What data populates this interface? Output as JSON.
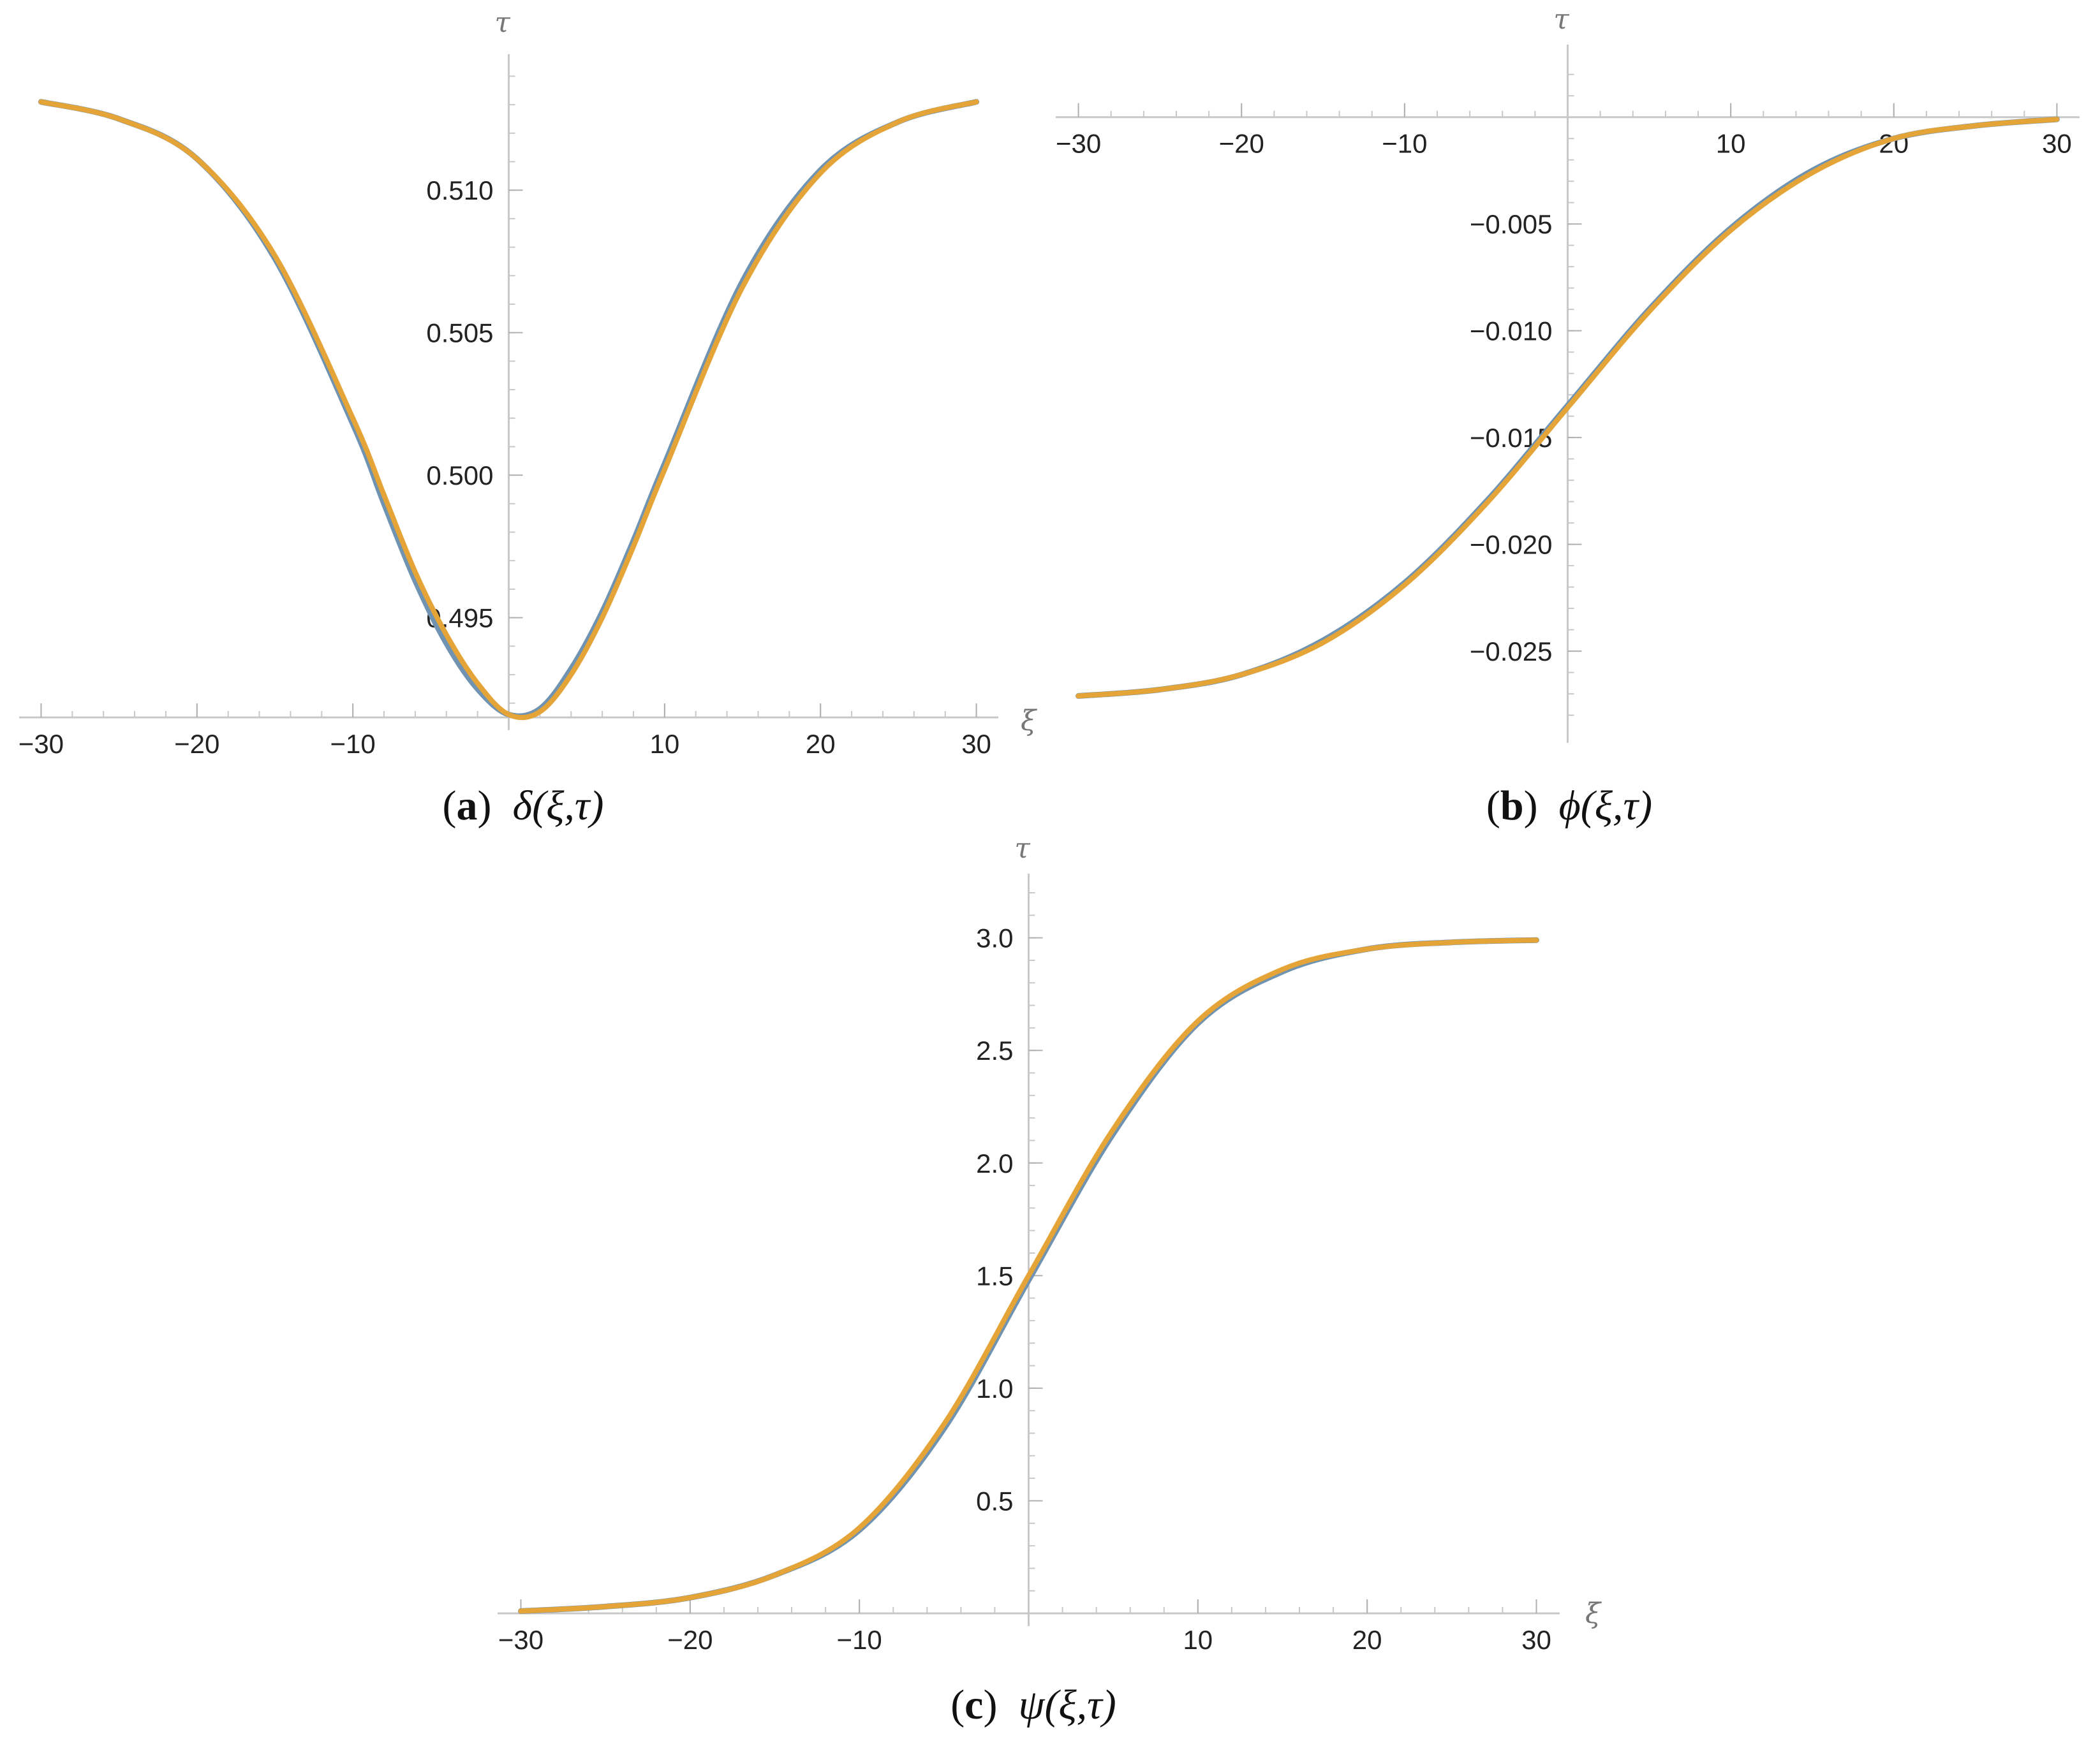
{
  "chart_data": [
    {
      "type": "line",
      "caption_letter": "a",
      "caption_math": "δ(ξ,τ)",
      "xlabel": "ξ",
      "ylabel": "τ",
      "xlim": [
        -31,
        31
      ],
      "ylim": [
        0.4915,
        0.5141
      ],
      "x_axis_at_y": 0.4915,
      "y_axis_at_x": 0,
      "xticks": [
        {
          "value": -30,
          "label": "−30"
        },
        {
          "value": -20,
          "label": "−20"
        },
        {
          "value": -10,
          "label": "−10"
        },
        {
          "value": 10,
          "label": "10"
        },
        {
          "value": 20,
          "label": "20"
        },
        {
          "value": 30,
          "label": "30"
        }
      ],
      "yticks": [
        {
          "value": 0.495,
          "label": "0.495"
        },
        {
          "value": 0.5,
          "label": "0.500"
        },
        {
          "value": 0.505,
          "label": "0.505"
        },
        {
          "value": 0.51,
          "label": "0.510"
        }
      ],
      "grid": false,
      "series": [
        {
          "color": "#6f93b0",
          "x": [
            -30,
            -25,
            -20,
            -15,
            -10,
            -8,
            -6,
            -4,
            -2,
            0,
            2,
            4,
            6,
            8,
            10,
            15,
            20,
            25,
            30
          ],
          "y": [
            0.5131,
            0.5125,
            0.5111,
            0.5076,
            0.5018,
            0.499,
            0.4963,
            0.4941,
            0.4925,
            0.4916,
            0.4918,
            0.4932,
            0.4952,
            0.4977,
            0.5004,
            0.5068,
            0.5107,
            0.5124,
            0.5131
          ]
        },
        {
          "color": "#e4a437",
          "x": [
            -30,
            -25,
            -20,
            -15,
            -10,
            -8,
            -6,
            -4,
            -2,
            0,
            2,
            4,
            6,
            8,
            10,
            15,
            20,
            25,
            30
          ],
          "y": [
            0.5131,
            0.5125,
            0.5111,
            0.5077,
            0.502,
            0.4993,
            0.4966,
            0.4944,
            0.4927,
            0.4916,
            0.4917,
            0.493,
            0.495,
            0.4975,
            0.5002,
            0.5066,
            0.5106,
            0.5124,
            0.5131
          ]
        }
      ]
    },
    {
      "type": "line",
      "caption_letter": "b",
      "caption_math": "ϕ(ξ,τ)",
      "xlabel": "ξ",
      "ylabel": "τ",
      "xlim": [
        -31,
        31
      ],
      "ylim": [
        -0.0287,
        0.0025
      ],
      "x_axis_at_y": 0,
      "y_axis_at_x": 0,
      "xticks": [
        {
          "value": -30,
          "label": "−30"
        },
        {
          "value": -20,
          "label": "−20"
        },
        {
          "value": -10,
          "label": "−10"
        },
        {
          "value": 10,
          "label": "10"
        },
        {
          "value": 20,
          "label": "20"
        },
        {
          "value": 30,
          "label": "30"
        }
      ],
      "yticks": [
        {
          "value": -0.005,
          "label": "−0.005"
        },
        {
          "value": -0.01,
          "label": "−0.010"
        },
        {
          "value": -0.015,
          "label": "−0.015"
        },
        {
          "value": -0.02,
          "label": "−0.020"
        },
        {
          "value": -0.025,
          "label": "−0.025"
        }
      ],
      "grid": false,
      "series": [
        {
          "color": "#6f93b0",
          "x": [
            -30,
            -25,
            -20,
            -15,
            -10,
            -5,
            0,
            5,
            10,
            15,
            20,
            25,
            30
          ],
          "y": [
            -0.0271,
            -0.0268,
            -0.0261,
            -0.0245,
            -0.0218,
            -0.018,
            -0.0135,
            -0.009,
            -0.0052,
            -0.0025,
            -0.001,
            -0.0004,
            -0.0001
          ]
        },
        {
          "color": "#e4a437",
          "x": [
            -30,
            -25,
            -20,
            -15,
            -10,
            -5,
            0,
            5,
            10,
            15,
            20,
            25,
            30
          ],
          "y": [
            -0.0271,
            -0.0268,
            -0.0261,
            -0.0246,
            -0.0219,
            -0.0181,
            -0.0136,
            -0.0091,
            -0.0053,
            -0.0026,
            -0.001,
            -0.0004,
            -0.0001
          ]
        }
      ]
    },
    {
      "type": "line",
      "caption_letter": "c",
      "caption_math": "ψ(ξ,τ)",
      "xlabel": "ξ",
      "ylabel": "τ",
      "xlim": [
        -31,
        31
      ],
      "ylim": [
        0,
        3.2
      ],
      "x_axis_at_y": 0,
      "y_axis_at_x": 0,
      "xticks": [
        {
          "value": -30,
          "label": "−30"
        },
        {
          "value": -20,
          "label": "−20"
        },
        {
          "value": -10,
          "label": "−10"
        },
        {
          "value": 10,
          "label": "10"
        },
        {
          "value": 20,
          "label": "20"
        },
        {
          "value": 30,
          "label": "30"
        }
      ],
      "yticks": [
        {
          "value": 0.5,
          "label": "0.5"
        },
        {
          "value": 1.0,
          "label": "1.0"
        },
        {
          "value": 1.5,
          "label": "1.5"
        },
        {
          "value": 2.0,
          "label": "2.0"
        },
        {
          "value": 2.5,
          "label": "2.5"
        },
        {
          "value": 3.0,
          "label": "3.0"
        }
      ],
      "grid": false,
      "series": [
        {
          "color": "#6f93b0",
          "x": [
            -30,
            -25,
            -20,
            -15,
            -10,
            -5,
            0,
            5,
            10,
            15,
            20,
            25,
            30
          ],
          "y": [
            0.01,
            0.03,
            0.07,
            0.17,
            0.37,
            0.82,
            1.48,
            2.13,
            2.62,
            2.85,
            2.95,
            2.98,
            2.99
          ]
        },
        {
          "color": "#e4a437",
          "x": [
            -30,
            -25,
            -20,
            -15,
            -10,
            -5,
            0,
            5,
            10,
            15,
            20,
            25,
            30
          ],
          "y": [
            0.01,
            0.03,
            0.07,
            0.17,
            0.38,
            0.84,
            1.5,
            2.15,
            2.63,
            2.86,
            2.95,
            2.98,
            2.99
          ]
        }
      ]
    }
  ]
}
